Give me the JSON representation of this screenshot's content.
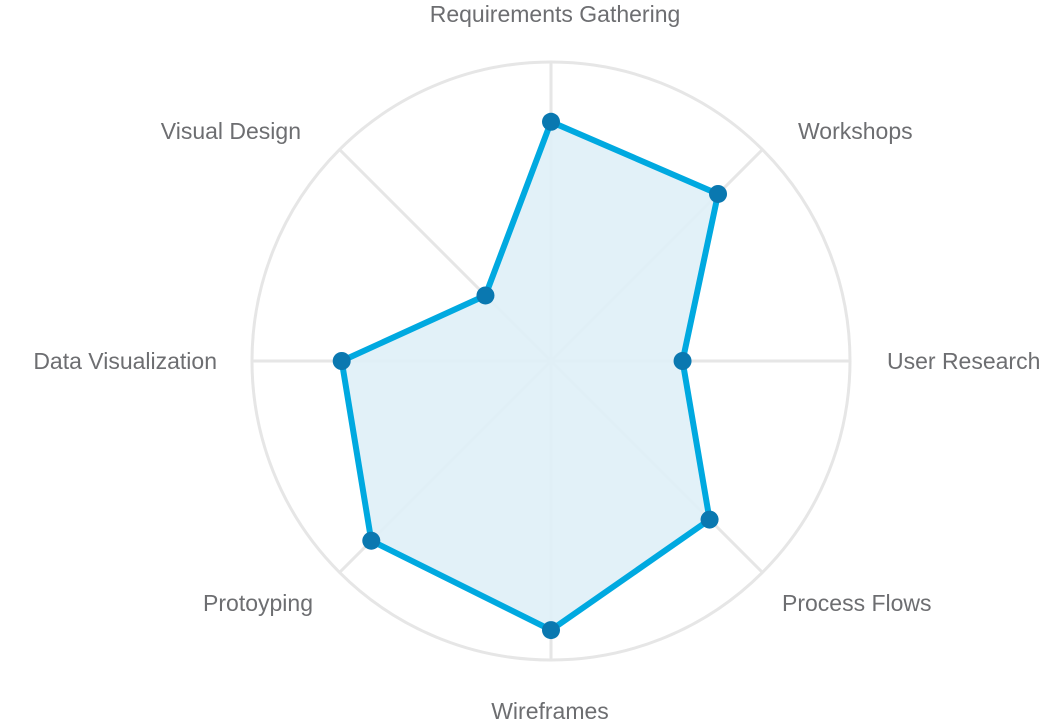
{
  "chart_data": {
    "type": "radar",
    "categories": [
      "Requirements Gathering",
      "Workshops",
      "User Research",
      "Process Flows",
      "Wireframes",
      "Protoyping",
      "Data Visualization",
      "Visual Design"
    ],
    "series": [
      {
        "values": [
          80,
          79,
          44,
          75,
          90,
          85,
          70,
          31
        ]
      }
    ],
    "rlim": [
      0,
      100
    ],
    "grid": true,
    "colors": {
      "line": "#00a9e0",
      "point": "#0a78b0",
      "fill": "#dff0f7",
      "grid": "#e6e6e6",
      "label": "#6d6e71"
    }
  }
}
